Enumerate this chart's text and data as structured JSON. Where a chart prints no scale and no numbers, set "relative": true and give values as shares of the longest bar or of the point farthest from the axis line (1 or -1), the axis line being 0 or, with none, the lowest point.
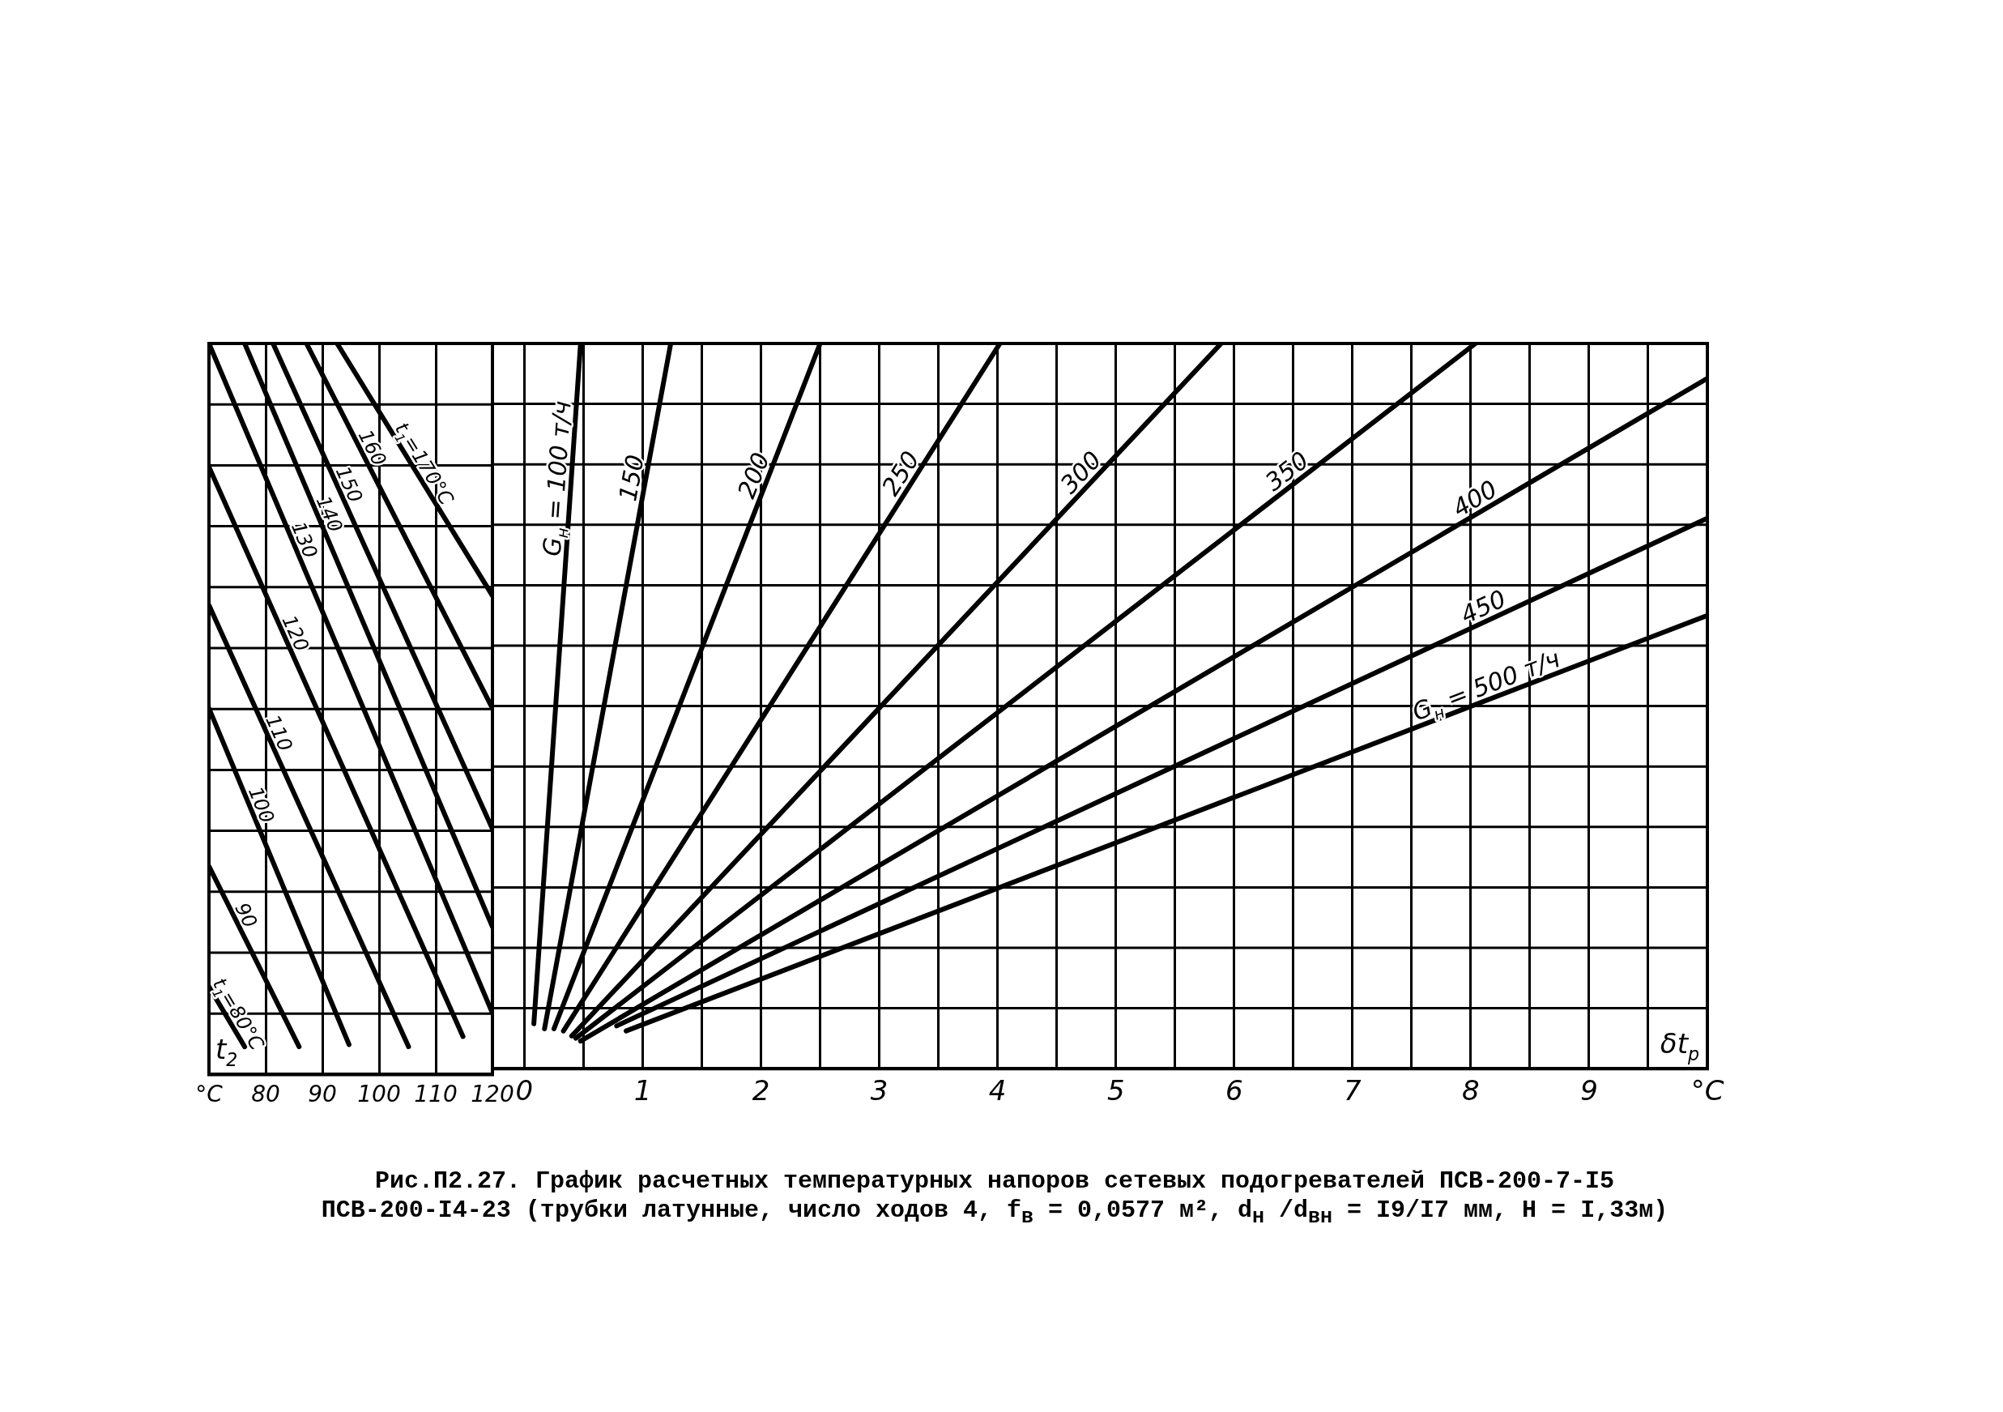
{
  "chart_data": [
    {
      "type": "line",
      "relative": true,
      "xlabel": "t$_{2}$",
      "xlim": [
        70,
        120
      ],
      "xticks": [
        {
          "value": 70,
          "label": "°C"
        },
        80,
        90,
        100,
        110,
        120
      ],
      "grid": true,
      "legend": false,
      "marker": "none",
      "series": [
        {
          "name": "t$_{1}$=80°C",
          "color": "#000000",
          "x": [
            70,
            76.3
          ],
          "values": [
            0.12,
            0.038
          ]
        },
        {
          "name": "90",
          "color": "#000000",
          "x": [
            70,
            85.9
          ],
          "values": [
            0.285,
            0.038
          ]
        },
        {
          "name": "100",
          "color": "#000000",
          "x": [
            70,
            94.7
          ],
          "values": [
            0.501,
            0.041
          ]
        },
        {
          "name": "110",
          "color": "#000000",
          "x": [
            70,
            105.2
          ],
          "values": [
            0.642,
            0.038
          ]
        },
        {
          "name": "120",
          "color": "#000000",
          "x": [
            70,
            114.8
          ],
          "values": [
            0.831,
            0.052
          ]
        },
        {
          "name": "130",
          "color": "#000000",
          "x": [
            70,
            120
          ],
          "values": [
            1.0,
            0.084
          ]
        },
        {
          "name": "140",
          "color": "#000000",
          "x": [
            76.3,
            120
          ],
          "values": [
            1.0,
            0.202
          ]
        },
        {
          "name": "150",
          "color": "#000000",
          "x": [
            81.3,
            120
          ],
          "values": [
            1.0,
            0.336
          ]
        },
        {
          "name": "160",
          "color": "#000000",
          "x": [
            87.2,
            120
          ],
          "values": [
            1.0,
            0.501
          ]
        },
        {
          "name": "t$_{1}$=170°C",
          "color": "#000000",
          "x": [
            92.6,
            120
          ],
          "values": [
            1.0,
            0.655
          ]
        }
      ]
    },
    {
      "type": "line",
      "relative": true,
      "xlabel": "δt$_{p}$",
      "xlim": [
        -0.27,
        10
      ],
      "xticks": [
        0,
        {
          "value": 0.5,
          "label": null
        },
        1,
        {
          "value": 1.5,
          "label": null
        },
        2,
        {
          "value": 2.5,
          "label": null
        },
        3,
        {
          "value": 3.5,
          "label": null
        },
        4,
        {
          "value": 4.5,
          "label": null
        },
        5,
        {
          "value": 5.5,
          "label": null
        },
        6,
        {
          "value": 6.5,
          "label": null
        },
        7,
        {
          "value": 7.5,
          "label": null
        },
        8,
        {
          "value": 8.5,
          "label": null
        },
        9,
        {
          "value": 9.5,
          "label": null
        },
        {
          "value": 10,
          "label": "°C"
        }
      ],
      "grid": true,
      "legend": false,
      "marker": "none",
      "annotations": [
        "Рис.П2.27. График расчетных температурных напоров сетевых подогревателей ПСВ-200-7-I5",
        "ПСВ-200-I4-23 (трубки латунные, число ходов 4, f$_{в}$ = 0,0577 м², d$_{н}$ /d$_{вн}$ = I9/I7 мм, H = I,33м)"
      ],
      "series": [
        {
          "name": "G$_{н}$ = 100 т/ч",
          "color": "#000000",
          "x": [
            0.08,
            0.475
          ],
          "values": [
            0.062,
            1.0
          ]
        },
        {
          "name": "150",
          "color": "#000000",
          "x": [
            0.17,
            1.237
          ],
          "values": [
            0.055,
            1.0
          ]
        },
        {
          "name": "200",
          "color": "#000000",
          "x": [
            0.25,
            2.5
          ],
          "values": [
            0.055,
            1.0
          ]
        },
        {
          "name": "250",
          "color": "#000000",
          "x": [
            0.33,
            4.02
          ],
          "values": [
            0.052,
            1.0
          ]
        },
        {
          "name": "300",
          "color": "#000000",
          "x": [
            0.4,
            5.89
          ],
          "values": [
            0.045,
            1.0
          ]
        },
        {
          "name": "350",
          "color": "#000000",
          "x": [
            0.435,
            8.04
          ],
          "values": [
            0.042,
            1.0
          ]
        },
        {
          "name": "400",
          "color": "#000000",
          "x": [
            0.475,
            10
          ],
          "values": [
            0.038,
            0.952
          ]
        },
        {
          "name": "450",
          "color": "#000000",
          "x": [
            0.78,
            10
          ],
          "values": [
            0.059,
            0.759
          ]
        },
        {
          "name": "G$_{н}$ = 500 т/ч",
          "color": "#000000",
          "x": [
            0.86,
            10
          ],
          "values": [
            0.052,
            0.625
          ]
        }
      ]
    }
  ]
}
